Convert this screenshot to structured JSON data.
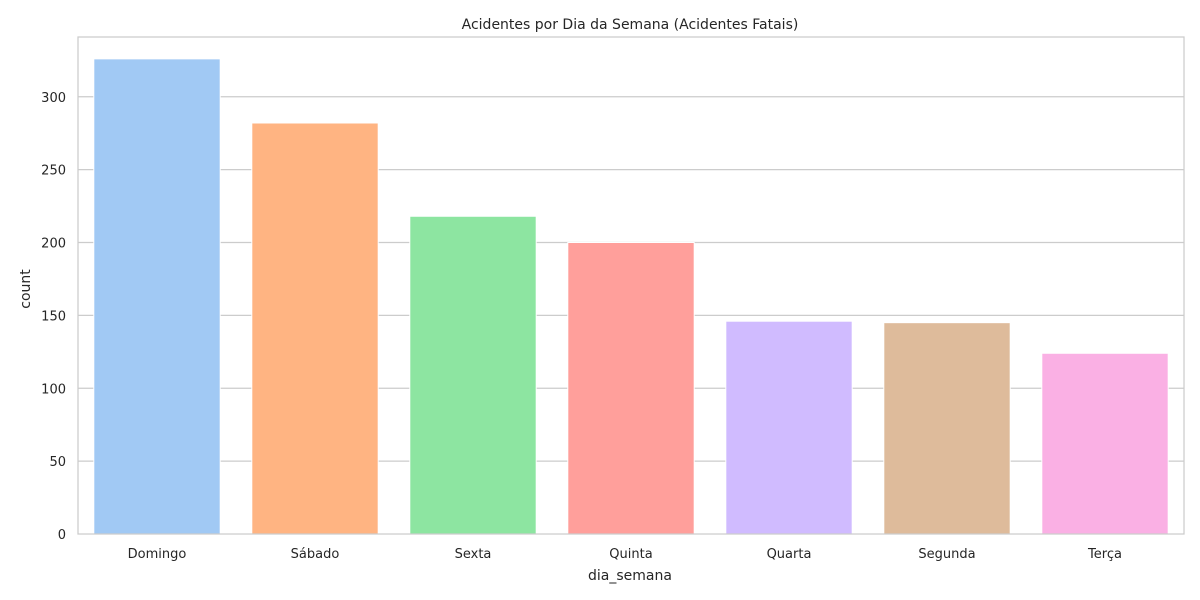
{
  "chart_data": {
    "type": "bar",
    "title": "Acidentes por Dia da Semana (Acidentes Fatais)",
    "xlabel": "dia_semana",
    "ylabel": "count",
    "categories": [
      "Domingo",
      "Sábado",
      "Sexta",
      "Quinta",
      "Quarta",
      "Segunda",
      "Terça"
    ],
    "values": [
      326,
      282,
      218,
      200,
      146,
      145,
      124
    ],
    "colors": [
      "#a1c9f4",
      "#ffb482",
      "#8de5a1",
      "#ff9f9b",
      "#d0bbff",
      "#debb9b",
      "#fab0e4"
    ],
    "ylim": [
      0,
      341
    ],
    "yticks": [
      0,
      50,
      100,
      150,
      200,
      250,
      300
    ],
    "grid": true,
    "style": {
      "background": "#ffffff",
      "grid_color": "#cccccc",
      "text_color": "#262626"
    }
  }
}
